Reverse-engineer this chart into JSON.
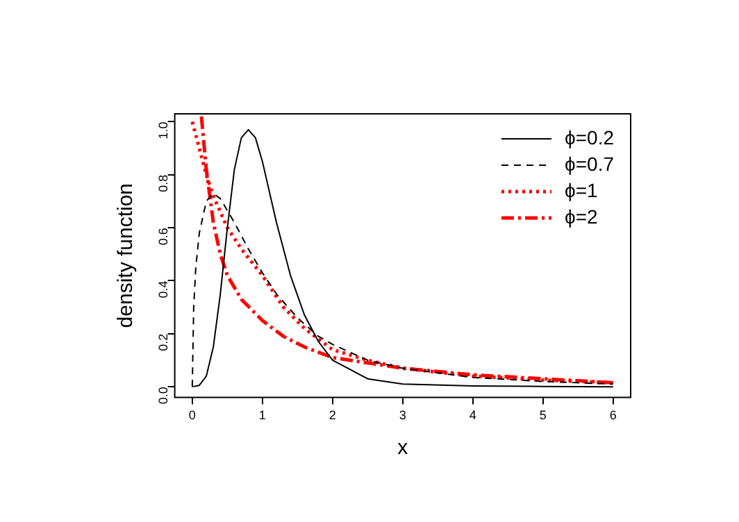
{
  "chart_data": {
    "type": "line",
    "xlabel": "x",
    "ylabel": "density function",
    "xlim": [
      -0.25,
      6.25
    ],
    "ylim": [
      -0.04,
      1.03
    ],
    "xticks": [
      0,
      1,
      2,
      3,
      4,
      5,
      6
    ],
    "yticks": [
      {
        "value": 0,
        "label": "0.0"
      },
      {
        "value": 0.2,
        "label": "0.2"
      },
      {
        "value": 0.4,
        "label": "0.4"
      },
      {
        "value": 0.6,
        "label": "0.6"
      },
      {
        "value": 0.8,
        "label": "0.8"
      },
      {
        "value": 1,
        "label": "1.0"
      }
    ],
    "grid": false,
    "legend": "top right",
    "marker": "none",
    "series": [
      {
        "name": "ϕ=0.2",
        "color": "#000000",
        "line_style": "solid",
        "x": [
          0,
          0.1,
          0.2,
          0.3,
          0.4,
          0.5,
          0.6,
          0.7,
          0.8,
          0.9,
          1.0,
          1.2,
          1.4,
          1.6,
          1.8,
          2.0,
          2.5,
          3,
          4,
          5,
          6
        ],
        "values": [
          0,
          0.005,
          0.04,
          0.15,
          0.35,
          0.6,
          0.82,
          0.94,
          0.97,
          0.94,
          0.85,
          0.62,
          0.42,
          0.27,
          0.17,
          0.1,
          0.03,
          0.01,
          0.003,
          0.001,
          0
        ]
      },
      {
        "name": "ϕ=0.7",
        "color": "#000000",
        "line_style": "dashed",
        "x": [
          0,
          0.02,
          0.05,
          0.1,
          0.2,
          0.3,
          0.4,
          0.6,
          0.8,
          1.0,
          1.2,
          1.5,
          1.8,
          2.0,
          2.5,
          3,
          4,
          5,
          6
        ],
        "values": [
          0,
          0.3,
          0.45,
          0.58,
          0.7,
          0.73,
          0.71,
          0.62,
          0.52,
          0.43,
          0.35,
          0.26,
          0.19,
          0.16,
          0.1,
          0.07,
          0.035,
          0.02,
          0.01
        ]
      },
      {
        "name": "ϕ=1",
        "color": "#ff0000",
        "line_style": "dotted",
        "x": [
          0,
          0.1,
          0.2,
          0.3,
          0.5,
          0.7,
          1.0,
          1.3,
          1.6,
          2.0,
          2.5,
          3,
          4,
          5,
          6
        ],
        "values": [
          1.0,
          0.9,
          0.8,
          0.72,
          0.6,
          0.52,
          0.42,
          0.3,
          0.22,
          0.14,
          0.1,
          0.07,
          0.04,
          0.025,
          0.015
        ]
      },
      {
        "name": "ϕ=2",
        "color": "#ff0000",
        "line_style": "dashdot",
        "x": [
          0.13,
          0.2,
          0.3,
          0.4,
          0.5,
          0.7,
          1.0,
          1.3,
          1.6,
          2.0,
          2.5,
          3,
          4,
          5,
          6
        ],
        "values": [
          1.02,
          0.82,
          0.62,
          0.5,
          0.42,
          0.33,
          0.25,
          0.19,
          0.15,
          0.11,
          0.09,
          0.07,
          0.045,
          0.03,
          0.015
        ]
      }
    ]
  }
}
